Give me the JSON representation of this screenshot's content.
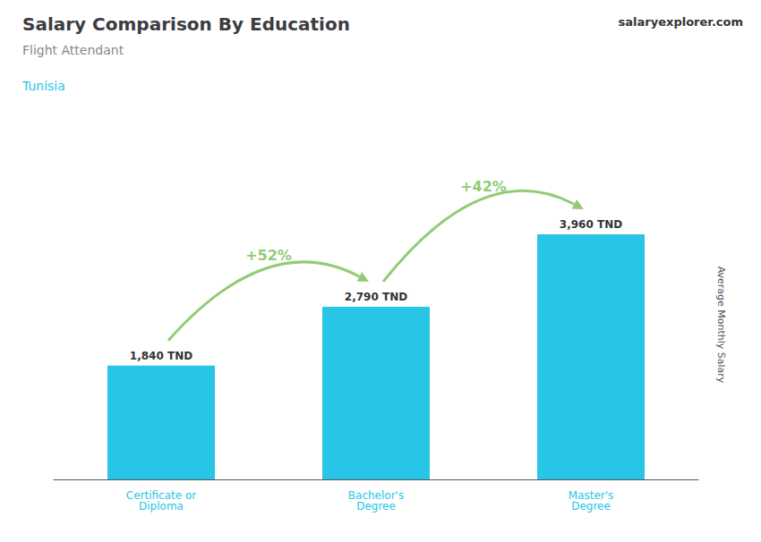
{
  "chart_data": {
    "type": "bar",
    "title": "Salary Comparison By Education",
    "subtitle": "Flight Attendant",
    "annotations": [
      "Tunisia",
      "salaryexplorer.com"
    ],
    "pct_labels": [
      "+52%",
      "+42%"
    ],
    "categories": [
      "Certificate or\nDiploma",
      "Bachelor's\nDegree",
      "Master's\nDegree"
    ],
    "values": [
      1840,
      2790,
      3960
    ],
    "value_labels": [
      "1,840 TND",
      "2,790 TND",
      "3,960 TND"
    ],
    "data_labels": true,
    "color": "#29c5e6",
    "y_label": "Average Monthly Salary",
    "ylim": [
      0,
      5000
    ],
    "tick_labels": "x",
    "grid": false
  }
}
